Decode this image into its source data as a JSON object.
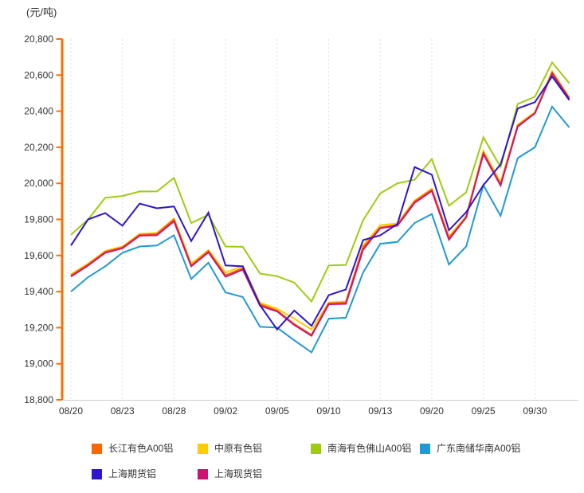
{
  "chart_data": {
    "type": "line",
    "unit_label": "(元/吨)",
    "y_axis": {
      "min": 18800,
      "max": 20800,
      "step": 200,
      "tick_labels": [
        "20,800",
        "20,600",
        "20,400",
        "20,200",
        "20,000",
        "19,800",
        "19,600",
        "19,400",
        "19,200",
        "19,000",
        "18,800"
      ]
    },
    "x_tick_labels": [
      "08/20",
      "08/23",
      "08/28",
      "09/02",
      "09/05",
      "09/10",
      "09/13",
      "09/20",
      "09/25",
      "09/30"
    ],
    "x_tick_indices": [
      0,
      3,
      6,
      9,
      12,
      15,
      18,
      21,
      24,
      27
    ],
    "num_points": 30,
    "grid": "vertical-dashed",
    "legend_position": "bottom",
    "axis_colors": {
      "y_axis_line": "#FF6F00",
      "x_axis_line": "#CCCCCC",
      "gridline": "#DEDEDE",
      "tick_text": "#333333"
    },
    "draw_order": [
      1,
      2,
      3,
      0,
      5,
      4
    ],
    "series": [
      {
        "name": "长江有色A00铝",
        "color": "#FF6600",
        "values": [
          19490,
          19550,
          19620,
          19645,
          19715,
          19720,
          19800,
          19545,
          19625,
          19490,
          19530,
          19330,
          19295,
          19220,
          19160,
          19335,
          19340,
          19645,
          19755,
          19770,
          19900,
          19965,
          19698,
          19810,
          20170,
          19995,
          20320,
          20390,
          20608,
          20465
        ]
      },
      {
        "name": "中原有色铝",
        "color": "#FFCC00",
        "values": [
          19495,
          19555,
          19625,
          19650,
          19720,
          19725,
          19805,
          19555,
          19630,
          19505,
          19542,
          19338,
          19305,
          19250,
          19190,
          19340,
          19345,
          19655,
          19768,
          19778,
          19905,
          19970,
          19705,
          19820,
          20180,
          20005,
          20325,
          20395,
          20622,
          20478
        ]
      },
      {
        "name": "南海有色佛山A00铝",
        "color": "#9FCC11",
        "values": [
          19715,
          19800,
          19920,
          19930,
          19955,
          19955,
          20030,
          19780,
          19825,
          19650,
          19648,
          19500,
          19485,
          19450,
          19345,
          19545,
          19548,
          19795,
          19945,
          20000,
          20020,
          20135,
          19876,
          19950,
          20255,
          20090,
          20440,
          20480,
          20670,
          20555
        ]
      },
      {
        "name": "广东南储华南A00铝",
        "color": "#2299D4",
        "values": [
          19400,
          19480,
          19540,
          19615,
          19650,
          19655,
          19712,
          19470,
          19560,
          19395,
          19370,
          19205,
          19200,
          19130,
          19063,
          19250,
          19255,
          19505,
          19665,
          19675,
          19780,
          19830,
          19550,
          19650,
          19990,
          19820,
          20140,
          20200,
          20425,
          20310
        ]
      },
      {
        "name": "上海期货铝",
        "color": "#2D16CE",
        "values": [
          19655,
          19800,
          19835,
          19765,
          19888,
          19862,
          19872,
          19680,
          19838,
          19545,
          19540,
          19325,
          19190,
          19295,
          19210,
          19380,
          19412,
          19685,
          19712,
          19775,
          20090,
          20048,
          19740,
          19840,
          19990,
          20105,
          20415,
          20450,
          20592,
          20462
        ]
      },
      {
        "name": "上海现货铝",
        "color": "#CC1373",
        "values": [
          19483,
          19545,
          19615,
          19640,
          19710,
          19712,
          19790,
          19540,
          19618,
          19482,
          19522,
          19322,
          19290,
          19215,
          19155,
          19330,
          19332,
          19632,
          19752,
          19765,
          19892,
          19958,
          19688,
          19812,
          20162,
          19988,
          20315,
          20388,
          20612,
          20470
        ]
      }
    ]
  }
}
